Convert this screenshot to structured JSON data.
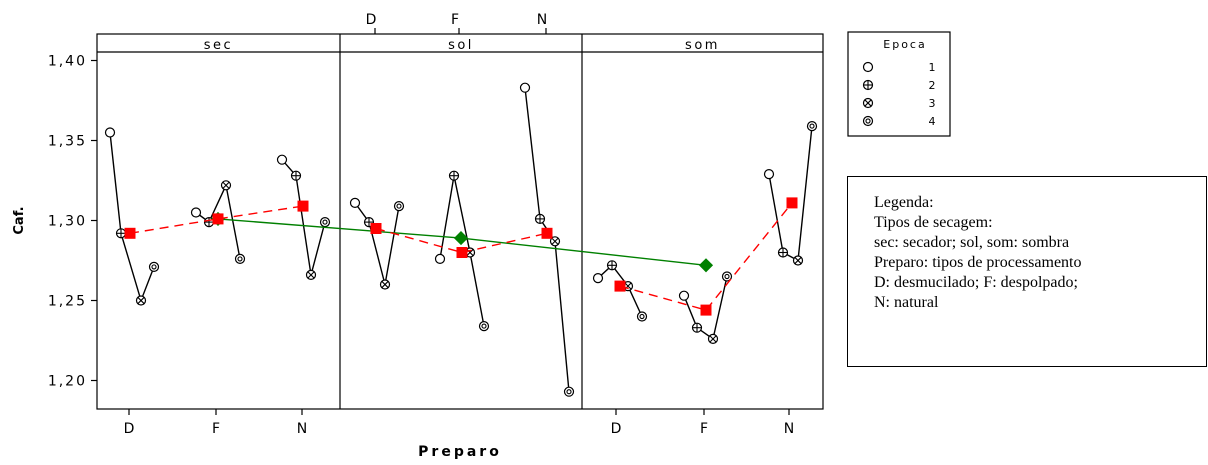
{
  "chart_data": {
    "type": "line",
    "ylabel": "Caf.",
    "xlabel": "Preparo",
    "ylim": [
      1.18,
      1.413
    ],
    "yticks": [
      1.2,
      1.25,
      1.3,
      1.35,
      1.4
    ],
    "ytick_labels": [
      "1,20",
      "1,25",
      "1,30",
      "1,35",
      "1,40"
    ],
    "categories": [
      "D",
      "F",
      "N"
    ],
    "top_axis_ticks": [
      "D",
      "F",
      "N"
    ],
    "panels": [
      "sec",
      "sol",
      "som"
    ],
    "epoch_legend": {
      "title": "Epoca",
      "entries": [
        {
          "label": "1",
          "marker": "circle-icon"
        },
        {
          "label": "2",
          "marker": "circle-plus-icon"
        },
        {
          "label": "3",
          "marker": "circle-x-icon"
        },
        {
          "label": "4",
          "marker": "circle-dot-icon"
        }
      ]
    },
    "individual": [
      {
        "panel": "sec",
        "category": "D",
        "values": [
          1.355,
          1.292,
          1.25,
          1.271
        ]
      },
      {
        "panel": "sec",
        "category": "F",
        "values": [
          1.305,
          1.299,
          1.322,
          1.276
        ]
      },
      {
        "panel": "sec",
        "category": "N",
        "values": [
          1.338,
          1.328,
          1.266,
          1.299
        ]
      },
      {
        "panel": "sol",
        "category": "D",
        "values": [
          1.311,
          1.299,
          1.26,
          1.309
        ]
      },
      {
        "panel": "sol",
        "category": "F",
        "values": [
          1.276,
          1.328,
          1.28,
          1.234
        ]
      },
      {
        "panel": "sol",
        "category": "N",
        "values": [
          1.383,
          1.301,
          1.287,
          1.193
        ]
      },
      {
        "panel": "som",
        "category": "D",
        "values": [
          1.264,
          1.272,
          1.259,
          1.24
        ]
      },
      {
        "panel": "som",
        "category": "F",
        "values": [
          1.253,
          1.233,
          1.226,
          1.265
        ]
      },
      {
        "panel": "som",
        "category": "N",
        "values": [
          1.329,
          1.28,
          1.275,
          1.359
        ]
      }
    ],
    "preparo_means": [
      {
        "panel": "sec",
        "values": [
          1.292,
          1.301,
          1.309
        ]
      },
      {
        "panel": "sol",
        "values": [
          1.295,
          1.28,
          1.292
        ]
      },
      {
        "panel": "som",
        "values": [
          1.259,
          1.244,
          1.311
        ]
      }
    ],
    "secagem_means": [
      1.301,
      1.289,
      1.272
    ],
    "colors": {
      "individual": "#000000",
      "preparo_means": "#ff0000",
      "secagem_means": "#008000"
    }
  },
  "note": {
    "lines": [
      "Legenda:",
      "Tipos de secagem:",
      "sec: secador; sol, som: sombra",
      "Preparo: tipos de processamento",
      "D: desmucilado; F: despolpado;",
      "N: natural"
    ]
  }
}
